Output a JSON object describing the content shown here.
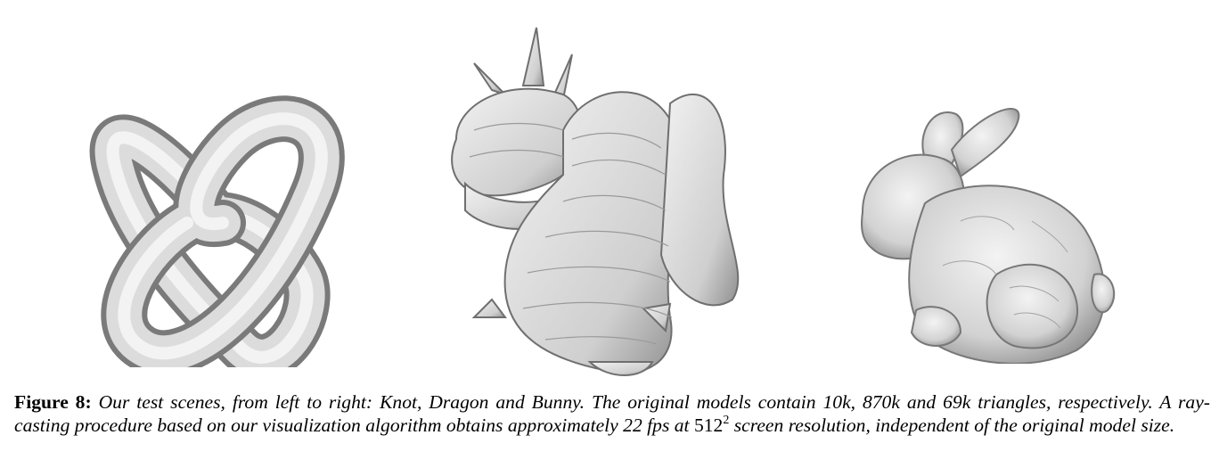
{
  "figure": {
    "models": [
      {
        "id": "knot",
        "name": "Knot"
      },
      {
        "id": "dragon",
        "name": "Dragon"
      },
      {
        "id": "bunny",
        "name": "Bunny"
      }
    ],
    "caption": {
      "label": "Figure 8:",
      "part1": "Our test scenes, from left to right: Knot, Dragon and Bunny. The original models contain 10k, 870k and 69k triangles, respectively. A ray-casting procedure based on our visualization algorithm obtains approximately 22 fps at",
      "math_base": "512",
      "math_exp": "2",
      "part2": "screen resolution, independent of the original model size."
    }
  }
}
